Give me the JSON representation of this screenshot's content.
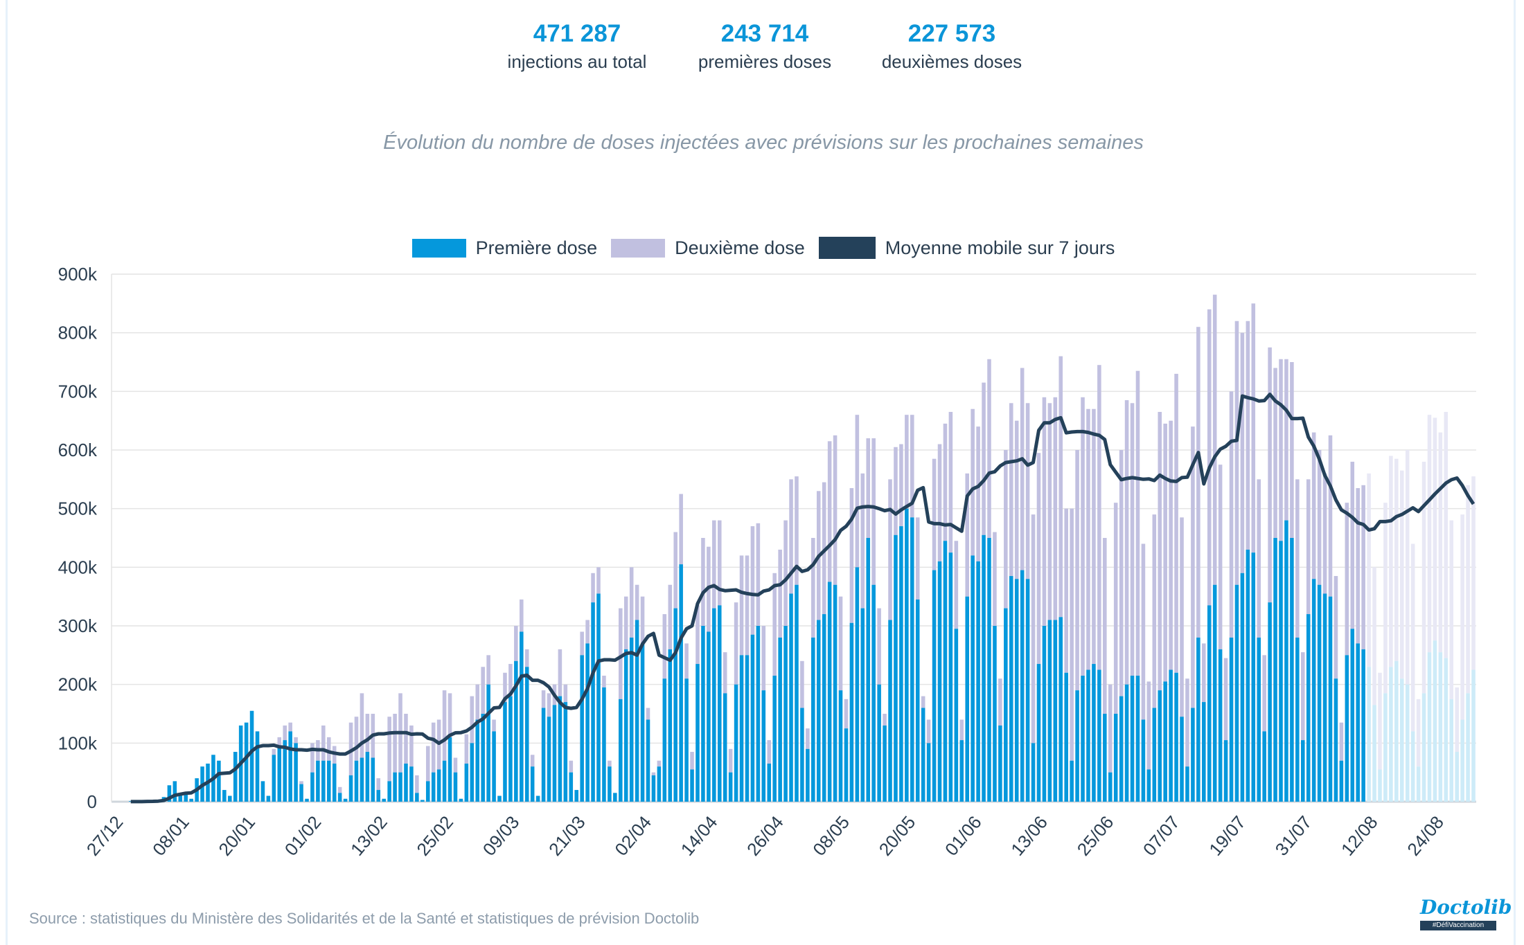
{
  "stats": [
    {
      "value": "471 287",
      "label": "injections au total"
    },
    {
      "value": "243 714",
      "label": "premières doses"
    },
    {
      "value": "227 573",
      "label": "deuxièmes doses"
    }
  ],
  "footer": {
    "source": "Source : statistiques du Ministère des Solidarités et de la Santé et statistiques de prévision Doctolib",
    "logo": "Doctolib",
    "logo_tag": "#DéfiVaccination"
  },
  "colors": {
    "premiere": "#0598dc",
    "deuxieme": "#c1c0e0",
    "premiere_forecast": "#cdebf8",
    "deuxieme_forecast": "#e8e8f5",
    "moyenne": "#24415a",
    "grid": "#e4e4e4",
    "stat_accent": "#0b95d8"
  },
  "chart_data": {
    "type": "bar",
    "stacked": true,
    "title": "Évolution du nombre de doses injectées avec prévisions sur les prochaines semaines",
    "legend": [
      "Première dose",
      "Deuxième dose",
      "Moyenne mobile sur 7 jours"
    ],
    "legend_position": "top",
    "grid": true,
    "x_start": "27/12/2020",
    "x_end": "31/08/2021",
    "forecast_start": "12/08/2021",
    "x_tick_labels": [
      "27/12",
      "08/01",
      "20/01",
      "01/02",
      "13/02",
      "25/02",
      "09/03",
      "21/03",
      "02/04",
      "14/04",
      "26/04",
      "08/05",
      "20/05",
      "01/06",
      "13/06",
      "25/06",
      "07/07",
      "19/07",
      "31/07",
      "12/08",
      "24/08"
    ],
    "y_tick_labels": [
      "0",
      "100k",
      "200k",
      "300k",
      "400k",
      "500k",
      "600k",
      "700k",
      "800k",
      "900k"
    ],
    "ylim_k": [
      0,
      900
    ],
    "series": [
      {
        "name": "Première dose",
        "values_k": [
          0,
          0,
          0,
          1,
          0,
          0,
          2,
          1,
          3,
          8,
          28,
          35,
          12,
          15,
          5,
          40,
          60,
          65,
          80,
          70,
          20,
          10,
          85,
          130,
          135,
          155,
          120,
          35,
          10,
          80,
          95,
          105,
          120,
          100,
          30,
          5,
          50,
          70,
          70,
          70,
          65,
          15,
          5,
          45,
          70,
          75,
          85,
          75,
          20,
          5,
          35,
          50,
          50,
          65,
          60,
          15,
          3,
          35,
          50,
          55,
          70,
          110,
          50,
          5,
          65,
          100,
          140,
          150,
          200,
          120,
          10,
          170,
          180,
          240,
          290,
          230,
          60,
          10,
          160,
          145,
          165,
          180,
          170,
          50,
          20,
          250,
          270,
          340,
          355,
          195,
          60,
          15,
          175,
          260,
          280,
          310,
          270,
          140,
          45,
          60,
          210,
          260,
          330,
          405,
          210,
          55,
          235,
          300,
          290,
          330,
          335,
          185,
          50,
          200,
          250,
          250,
          285,
          300,
          190,
          65,
          215,
          280,
          300,
          355,
          370,
          160,
          90,
          280,
          310,
          320,
          375,
          370,
          190,
          125,
          305,
          400,
          330,
          450,
          370,
          200,
          130,
          310,
          455,
          470,
          500,
          485,
          345,
          160,
          100,
          395,
          410,
          445,
          425,
          295,
          105,
          350,
          420,
          410,
          455,
          450,
          300,
          130,
          330,
          385,
          380,
          395,
          380,
          100,
          235,
          300,
          310,
          310,
          315,
          220,
          70,
          190,
          215,
          225,
          235,
          225,
          150,
          50,
          150,
          180,
          200,
          215,
          215,
          140,
          55,
          160,
          190,
          205,
          225,
          220,
          145,
          60,
          160,
          280,
          170,
          335,
          370,
          260,
          105,
          280,
          370,
          390,
          430,
          425,
          280,
          120,
          340,
          450,
          445,
          480,
          450,
          280,
          105,
          320,
          380,
          370,
          355,
          350,
          210,
          70,
          250,
          295,
          270,
          260,
          230,
          165,
          55,
          185,
          230,
          240,
          210,
          200,
          120,
          60,
          185,
          255,
          275,
          255,
          245,
          175,
          85,
          140,
          185,
          225
        ]
      },
      {
        "name": "Deuxième dose",
        "values_k": [
          0,
          0,
          0,
          0,
          0,
          0,
          0,
          0,
          0,
          0,
          0,
          0,
          0,
          0,
          0,
          0,
          0,
          0,
          0,
          0,
          0,
          0,
          0,
          0,
          0,
          0,
          0,
          0,
          0,
          10,
          15,
          25,
          15,
          10,
          5,
          0,
          50,
          35,
          60,
          40,
          30,
          10,
          0,
          90,
          75,
          110,
          65,
          75,
          20,
          0,
          110,
          100,
          135,
          85,
          70,
          30,
          0,
          60,
          85,
          85,
          120,
          75,
          25,
          0,
          50,
          80,
          60,
          80,
          50,
          20,
          0,
          50,
          55,
          60,
          55,
          30,
          20,
          0,
          30,
          40,
          35,
          80,
          30,
          20,
          0,
          40,
          40,
          50,
          45,
          20,
          10,
          0,
          155,
          90,
          120,
          60,
          80,
          20,
          5,
          10,
          110,
          110,
          130,
          120,
          60,
          30,
          100,
          150,
          145,
          150,
          145,
          70,
          40,
          140,
          170,
          170,
          185,
          175,
          110,
          40,
          175,
          150,
          180,
          195,
          185,
          80,
          35,
          170,
          220,
          225,
          240,
          255,
          160,
          50,
          230,
          260,
          230,
          170,
          250,
          130,
          20,
          240,
          150,
          140,
          160,
          175,
          140,
          20,
          40,
          190,
          200,
          200,
          240,
          150,
          35,
          210,
          250,
          230,
          260,
          305,
          160,
          80,
          270,
          295,
          270,
          345,
          300,
          390,
          360,
          390,
          370,
          380,
          445,
          280,
          430,
          410,
          475,
          445,
          435,
          520,
          300,
          150,
          360,
          420,
          485,
          465,
          520,
          300,
          150,
          330,
          475,
          440,
          425,
          510,
          340,
          150,
          480,
          530,
          100,
          505,
          495,
          315,
          140,
          420,
          450,
          410,
          390,
          425,
          270,
          130,
          435,
          290,
          310,
          275,
          300,
          270,
          150,
          230,
          250,
          230,
          205,
          275,
          175,
          65,
          260,
          285,
          265,
          280,
          330,
          235,
          165,
          325,
          360,
          345,
          355,
          400,
          320,
          115,
          395,
          405,
          380,
          375,
          420,
          305,
          110,
          350,
          355,
          330
        ]
      },
      {
        "name": "Moyenne mobile sur 7 jours",
        "type": "line",
        "of": "total"
      }
    ]
  }
}
